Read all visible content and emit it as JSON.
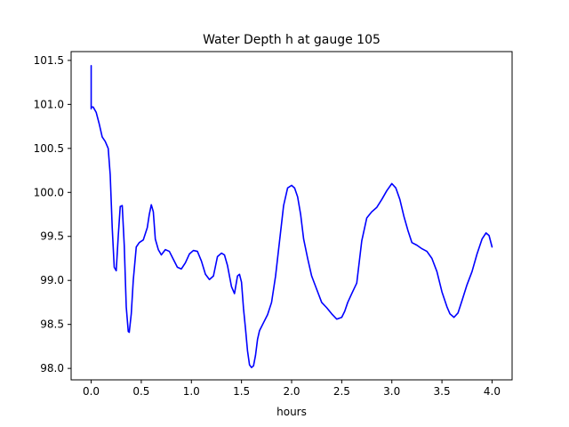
{
  "chart_data": {
    "type": "line",
    "title": "Water Depth h at gauge 105",
    "xlabel": "hours",
    "ylabel": "",
    "xlim": [
      -0.2,
      4.2
    ],
    "ylim": [
      97.87,
      101.6
    ],
    "xticks": [
      0.0,
      0.5,
      1.0,
      1.5,
      2.0,
      2.5,
      3.0,
      3.5,
      4.0
    ],
    "xtick_labels": [
      "0.0",
      "0.5",
      "1.0",
      "1.5",
      "2.0",
      "2.5",
      "3.0",
      "3.5",
      "4.0"
    ],
    "yticks": [
      98.0,
      98.5,
      99.0,
      99.5,
      100.0,
      100.5,
      101.0,
      101.5
    ],
    "ytick_labels": [
      "98.0",
      "98.5",
      "99.0",
      "99.5",
      "100.0",
      "100.5",
      "101.0",
      "101.5"
    ],
    "grid": false,
    "series": [
      {
        "color": "#0000ff",
        "x": [
          0.0,
          0.0,
          0.0,
          0.02,
          0.05,
          0.08,
          0.11,
          0.14,
          0.17,
          0.19,
          0.21,
          0.23,
          0.25,
          0.27,
          0.29,
          0.31,
          0.33,
          0.35,
          0.37,
          0.38,
          0.4,
          0.42,
          0.45,
          0.48,
          0.52,
          0.56,
          0.58,
          0.6,
          0.62,
          0.64,
          0.67,
          0.7,
          0.74,
          0.78,
          0.82,
          0.86,
          0.9,
          0.94,
          0.98,
          1.02,
          1.06,
          1.1,
          1.14,
          1.18,
          1.22,
          1.26,
          1.3,
          1.33,
          1.36,
          1.4,
          1.43,
          1.46,
          1.48,
          1.5,
          1.52,
          1.54,
          1.56,
          1.58,
          1.6,
          1.62,
          1.64,
          1.66,
          1.68,
          1.72,
          1.76,
          1.8,
          1.84,
          1.88,
          1.92,
          1.96,
          2.0,
          2.03,
          2.06,
          2.09,
          2.12,
          2.16,
          2.2,
          2.25,
          2.3,
          2.35,
          2.4,
          2.45,
          2.5,
          2.53,
          2.56,
          2.6,
          2.65,
          2.7,
          2.75,
          2.8,
          2.85,
          2.9,
          2.95,
          3.0,
          3.04,
          3.08,
          3.12,
          3.16,
          3.2,
          3.25,
          3.3,
          3.35,
          3.4,
          3.45,
          3.5,
          3.55,
          3.58,
          3.62,
          3.66,
          3.7,
          3.75,
          3.8,
          3.85,
          3.9,
          3.94,
          3.97,
          4.0
        ],
        "y": [
          101.44,
          100.95,
          100.97,
          100.97,
          100.91,
          100.78,
          100.63,
          100.58,
          100.5,
          100.2,
          99.6,
          99.15,
          99.11,
          99.5,
          99.84,
          99.85,
          99.4,
          98.7,
          98.42,
          98.41,
          98.62,
          99.0,
          99.38,
          99.43,
          99.46,
          99.6,
          99.75,
          99.86,
          99.78,
          99.47,
          99.35,
          99.29,
          99.35,
          99.33,
          99.24,
          99.15,
          99.13,
          99.2,
          99.3,
          99.34,
          99.33,
          99.22,
          99.07,
          99.01,
          99.05,
          99.27,
          99.31,
          99.29,
          99.17,
          98.93,
          98.85,
          99.05,
          99.07,
          98.98,
          98.68,
          98.45,
          98.2,
          98.04,
          98.01,
          98.03,
          98.15,
          98.33,
          98.43,
          98.52,
          98.61,
          98.75,
          99.05,
          99.45,
          99.85,
          100.05,
          100.08,
          100.05,
          99.95,
          99.75,
          99.47,
          99.25,
          99.05,
          98.9,
          98.75,
          98.69,
          98.62,
          98.56,
          98.58,
          98.65,
          98.75,
          98.85,
          98.97,
          99.45,
          99.71,
          99.78,
          99.83,
          99.92,
          100.02,
          100.1,
          100.05,
          99.92,
          99.73,
          99.57,
          99.43,
          99.4,
          99.36,
          99.33,
          99.25,
          99.1,
          98.87,
          98.7,
          98.62,
          98.58,
          98.63,
          98.77,
          98.95,
          99.1,
          99.3,
          99.47,
          99.54,
          99.51,
          99.38
        ]
      }
    ]
  }
}
